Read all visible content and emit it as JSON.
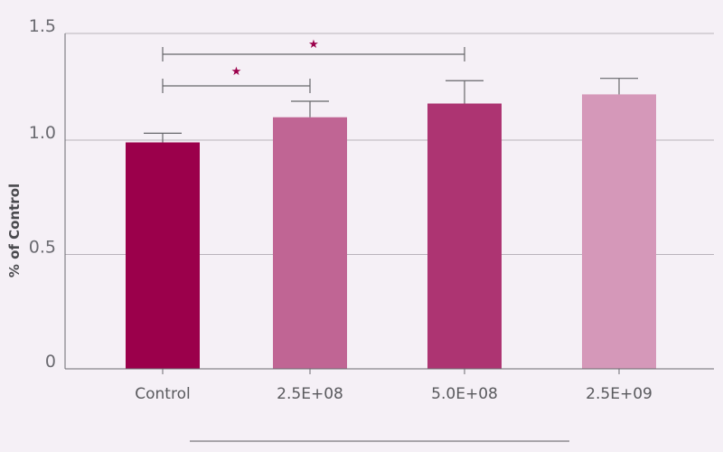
{
  "chart_data": {
    "type": "bar",
    "title": "",
    "xlabel": "",
    "ylabel": "% of Control",
    "ylim": [
      0,
      1.5
    ],
    "yticks": [
      "0",
      "0.5",
      "1.0",
      "1.5"
    ],
    "ytick_values": [
      0,
      0.5,
      1.0,
      1.5
    ],
    "grid": true,
    "categories": [
      "Control",
      "2.5E+08",
      "5.0E+08",
      "2.5E+09"
    ],
    "values": [
      0.99,
      1.1,
      1.16,
      1.2
    ],
    "error_upper": [
      1.03,
      1.17,
      1.26,
      1.27
    ],
    "colors": [
      "#9b004b",
      "#c06594",
      "#ad3472",
      "#d598b9"
    ],
    "significance": [
      {
        "from": 0,
        "to": 1,
        "label": "★",
        "level": 1.25
      },
      {
        "from": 0,
        "to": 2,
        "label": "★",
        "level": 1.39
      }
    ],
    "star_color": "#9b004b",
    "axis_color": "#6a6a70"
  }
}
